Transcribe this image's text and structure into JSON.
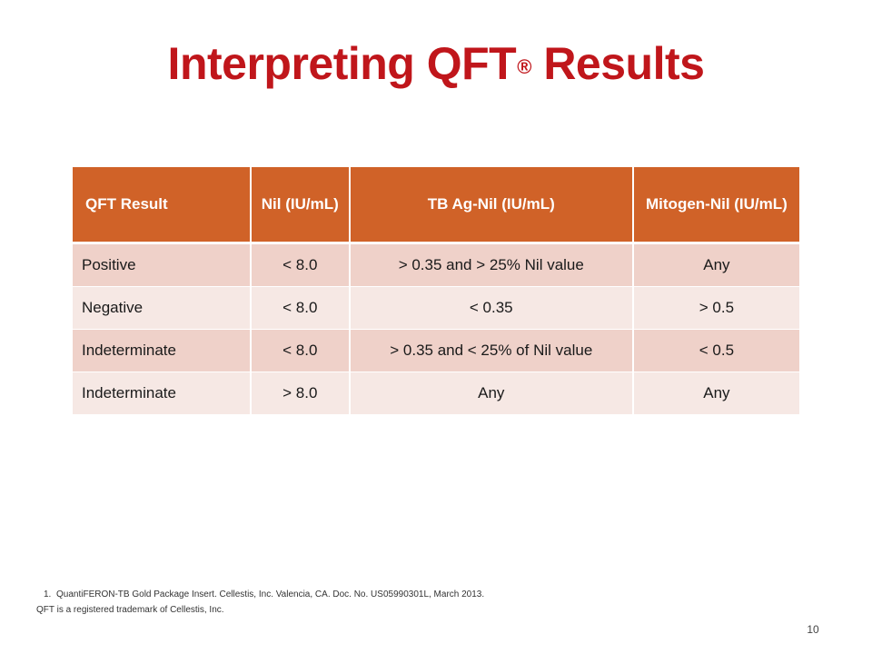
{
  "slide": {
    "title_main": "Interpreting QFT",
    "title_mark": "®",
    "title_end": " Results",
    "page_number": "10"
  },
  "table": {
    "headers": {
      "col1": "QFT Result",
      "col2": "Nil (IU/mL)",
      "col3": "TB Ag-Nil (IU/mL)",
      "col4": "Mitogen-Nil (IU/mL)"
    },
    "rows": [
      {
        "result": "Positive",
        "nil": "< 8.0",
        "tb_ag": "> 0.35 and > 25% Nil value",
        "mitogen": "Any"
      },
      {
        "result": "Negative",
        "nil": "< 8.0",
        "tb_ag": "< 0.35",
        "mitogen": "> 0.5"
      },
      {
        "result": "Indeterminate",
        "nil": "< 8.0",
        "tb_ag": "> 0.35 and < 25% of Nil value",
        "mitogen": "< 0.5"
      },
      {
        "result": "Indeterminate",
        "nil": "> 8.0",
        "tb_ag": "Any",
        "mitogen": "Any"
      }
    ]
  },
  "footnotes": {
    "ref_number": "1.",
    "ref_text": "QuantiFERON-TB Gold Package Insert. Cellestis, Inc. Valencia, CA. Doc. No. US05990301L, March 2013.",
    "trademark": "QFT is a registered trademark of Cellestis, Inc."
  }
}
